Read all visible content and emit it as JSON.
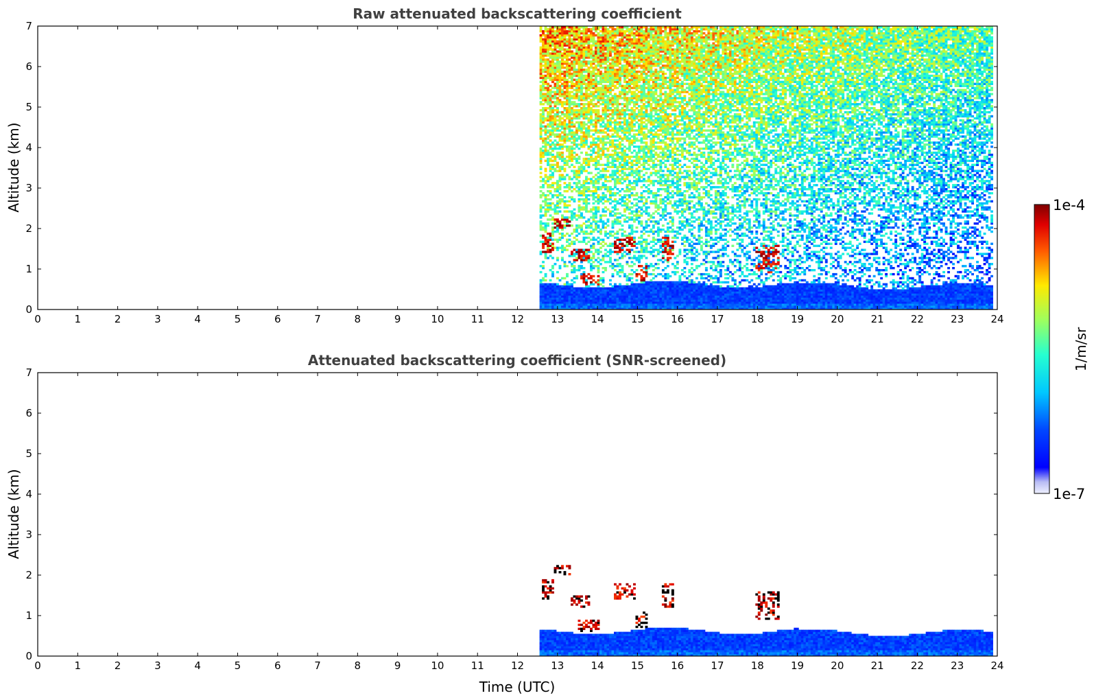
{
  "chart_data": [
    {
      "type": "heatmap",
      "title": "Raw attenuated backscattering coefficient",
      "xlabel": "",
      "ylabel": "Altitude (km)",
      "xlim": [
        0,
        24
      ],
      "ylim": [
        0,
        7
      ],
      "xticks": [
        "0",
        "1",
        "2",
        "3",
        "4",
        "5",
        "6",
        "7",
        "8",
        "9",
        "10",
        "11",
        "12",
        "13",
        "14",
        "15",
        "16",
        "17",
        "18",
        "19",
        "20",
        "21",
        "22",
        "23",
        "24"
      ],
      "yticks": [
        "0",
        "1",
        "2",
        "3",
        "4",
        "5",
        "6",
        "7"
      ],
      "data_time_range": [
        12.55,
        23.85
      ],
      "boundary_layer_top_km": 0.6,
      "noise_level": "high above boundary layer, increasing with altitude",
      "cloud_features": [
        {
          "time": [
            12.6,
            12.9
          ],
          "alt": [
            1.4,
            1.9
          ]
        },
        {
          "time": [
            12.9,
            13.3
          ],
          "alt": [
            2.0,
            2.2
          ]
        },
        {
          "time": [
            13.3,
            13.8
          ],
          "alt": [
            1.2,
            1.5
          ]
        },
        {
          "time": [
            13.5,
            14.0
          ],
          "alt": [
            0.6,
            0.9
          ]
        },
        {
          "time": [
            14.4,
            14.9
          ],
          "alt": [
            1.4,
            1.8
          ]
        },
        {
          "time": [
            14.9,
            15.2
          ],
          "alt": [
            0.7,
            1.1
          ]
        },
        {
          "time": [
            15.6,
            15.9
          ],
          "alt": [
            1.2,
            1.8
          ]
        },
        {
          "time": [
            17.9,
            18.5
          ],
          "alt": [
            0.9,
            1.6
          ]
        }
      ]
    },
    {
      "type": "heatmap",
      "title": "Attenuated backscattering coefficient (SNR-screened)",
      "xlabel": "Time (UTC)",
      "ylabel": "Altitude (km)",
      "xlim": [
        0,
        24
      ],
      "ylim": [
        0,
        7
      ],
      "xticks": [
        "0",
        "1",
        "2",
        "3",
        "4",
        "5",
        "6",
        "7",
        "8",
        "9",
        "10",
        "11",
        "12",
        "13",
        "14",
        "15",
        "16",
        "17",
        "18",
        "19",
        "20",
        "21",
        "22",
        "23",
        "24"
      ],
      "yticks": [
        "0",
        "1",
        "2",
        "3",
        "4",
        "5",
        "6",
        "7"
      ],
      "data_time_range": [
        12.55,
        23.85
      ],
      "boundary_layer_top_km": 0.6
    }
  ],
  "colorbar": {
    "label": "1/m/sr",
    "max_label": "1e-4",
    "min_label": "1e-7",
    "scale": "log",
    "colormap": "jet"
  }
}
